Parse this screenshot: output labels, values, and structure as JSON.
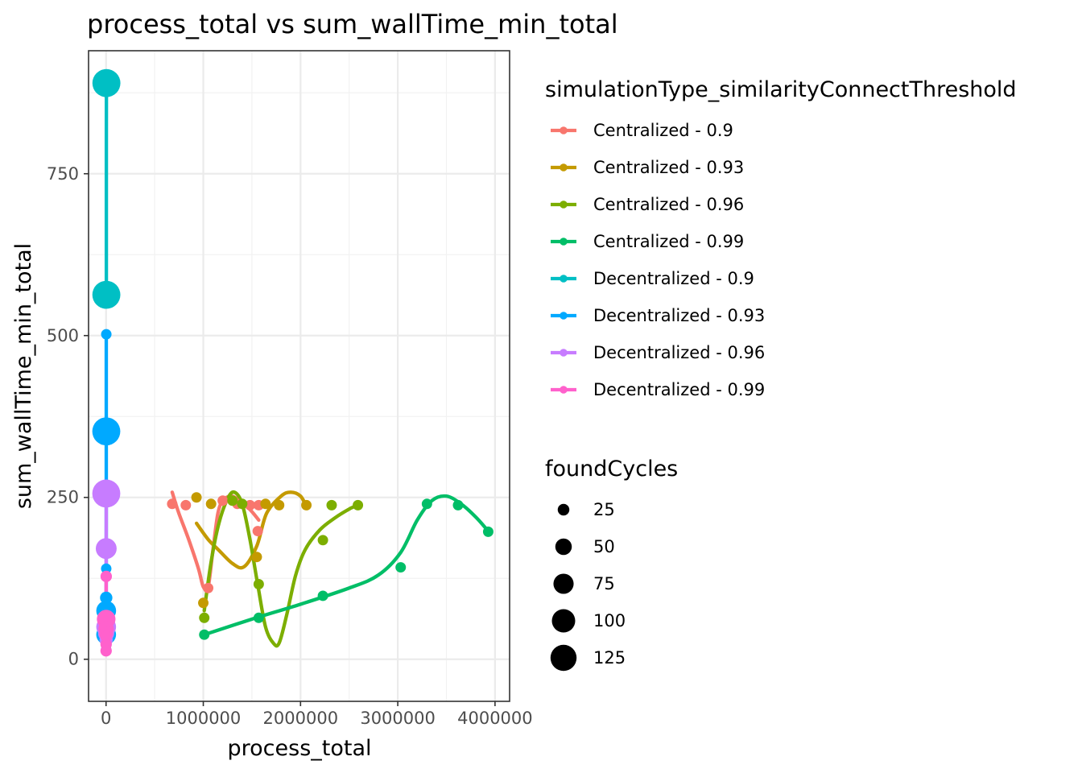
{
  "chart_data": {
    "type": "scatter",
    "title": "process_total  vs  sum_wallTime_min_total",
    "xlabel": "process_total",
    "ylabel": "sum_wallTime_min_total",
    "xlim": [
      -180000,
      4150000
    ],
    "ylim": [
      -65,
      940
    ],
    "xticks": [
      0,
      1000000,
      2000000,
      3000000,
      4000000
    ],
    "xtick_labels": [
      "0",
      "1000000",
      "2000000",
      "3000000",
      "4000000"
    ],
    "yticks": [
      0,
      250,
      500,
      750
    ],
    "ytick_labels": [
      "0",
      "250",
      "500",
      "750"
    ],
    "grid": true,
    "legend_placement": "right",
    "color_legend_title": "simulationType_similarityConnectThreshold",
    "size_legend_title": "foundCycles",
    "size_legend": [
      {
        "label": "25",
        "value": 25
      },
      {
        "label": "50",
        "value": 50
      },
      {
        "label": "75",
        "value": 75
      },
      {
        "label": "100",
        "value": 100
      },
      {
        "label": "125",
        "value": 125
      }
    ],
    "series": [
      {
        "name": "Centralized - 0.9",
        "color": "#F8766D",
        "points": [
          [
            680000,
            240,
            5
          ],
          [
            820000,
            238,
            5
          ],
          [
            1050000,
            110,
            5
          ],
          [
            1200000,
            245,
            5
          ],
          [
            1350000,
            240,
            5
          ],
          [
            1480000,
            238,
            5
          ],
          [
            1570000,
            238,
            5
          ],
          [
            1560000,
            198,
            5
          ]
        ],
        "trend": [
          [
            680000,
            258
          ],
          [
            750000,
            225
          ],
          [
            850000,
            185
          ],
          [
            950000,
            140
          ],
          [
            1000000,
            112
          ],
          [
            1050000,
            112
          ],
          [
            1100000,
            170
          ],
          [
            1150000,
            225
          ],
          [
            1200000,
            245
          ],
          [
            1280000,
            252
          ],
          [
            1350000,
            248
          ],
          [
            1420000,
            240
          ],
          [
            1500000,
            228
          ],
          [
            1570000,
            215
          ]
        ]
      },
      {
        "name": "Centralized - 0.93",
        "color": "#C49A00",
        "points": [
          [
            930000,
            250,
            5
          ],
          [
            1000000,
            87,
            5
          ],
          [
            1080000,
            240,
            5
          ],
          [
            1550000,
            158,
            5
          ],
          [
            1640000,
            240,
            5
          ],
          [
            1780000,
            238,
            5
          ],
          [
            2060000,
            238,
            5
          ]
        ],
        "trend": [
          [
            930000,
            210
          ],
          [
            1050000,
            185
          ],
          [
            1150000,
            170
          ],
          [
            1300000,
            148
          ],
          [
            1420000,
            143
          ],
          [
            1550000,
            175
          ],
          [
            1650000,
            225
          ],
          [
            1800000,
            252
          ],
          [
            1900000,
            258
          ],
          [
            2000000,
            252
          ],
          [
            2060000,
            236
          ]
        ]
      },
      {
        "name": "Centralized - 0.96",
        "color": "#7CAE00",
        "points": [
          [
            1010000,
            64,
            5
          ],
          [
            1300000,
            245,
            5
          ],
          [
            1400000,
            240,
            5
          ],
          [
            1570000,
            116,
            5
          ],
          [
            2230000,
            184,
            5
          ],
          [
            2320000,
            238,
            5
          ],
          [
            2590000,
            238,
            5
          ]
        ],
        "trend": [
          [
            1010000,
            75
          ],
          [
            1080000,
            150
          ],
          [
            1160000,
            210
          ],
          [
            1250000,
            248
          ],
          [
            1320000,
            258
          ],
          [
            1400000,
            240
          ],
          [
            1480000,
            185
          ],
          [
            1560000,
            115
          ],
          [
            1640000,
            50
          ],
          [
            1720000,
            25
          ],
          [
            1780000,
            25
          ],
          [
            1860000,
            70
          ],
          [
            1950000,
            130
          ],
          [
            2050000,
            170
          ],
          [
            2200000,
            200
          ],
          [
            2350000,
            218
          ],
          [
            2500000,
            232
          ],
          [
            2590000,
            238
          ]
        ]
      },
      {
        "name": "Centralized - 0.99",
        "color": "#00BE67",
        "points": [
          [
            1010000,
            38,
            5
          ],
          [
            1570000,
            64,
            5
          ],
          [
            2230000,
            98,
            5
          ],
          [
            3030000,
            142,
            5
          ],
          [
            3300000,
            240,
            5
          ],
          [
            3620000,
            238,
            5
          ],
          [
            3930000,
            197,
            5
          ]
        ],
        "trend": [
          [
            1010000,
            38
          ],
          [
            1500000,
            62
          ],
          [
            2000000,
            85
          ],
          [
            2500000,
            110
          ],
          [
            2800000,
            130
          ],
          [
            3030000,
            165
          ],
          [
            3200000,
            215
          ],
          [
            3350000,
            245
          ],
          [
            3500000,
            252
          ],
          [
            3650000,
            240
          ],
          [
            3800000,
            220
          ],
          [
            3930000,
            198
          ]
        ]
      },
      {
        "name": "Decentralized - 0.9",
        "color": "#00BFC4",
        "points": [
          [
            3500,
            890,
            36
          ],
          [
            3000,
            563,
            36
          ]
        ],
        "trend": [
          [
            3500,
            890
          ],
          [
            3300,
            800
          ],
          [
            3200,
            700
          ],
          [
            3100,
            600
          ],
          [
            3000,
            563
          ]
        ]
      },
      {
        "name": "Decentralized - 0.93",
        "color": "#00A9FF",
        "points": [
          [
            2500,
            502,
            5
          ],
          [
            2300,
            352,
            36
          ],
          [
            1800,
            140,
            5
          ],
          [
            1500,
            95,
            7
          ],
          [
            1200,
            75,
            18
          ],
          [
            1000,
            70,
            11
          ],
          [
            1500,
            57,
            14
          ],
          [
            900,
            38,
            18
          ],
          [
            700,
            25,
            5
          ],
          [
            600,
            15,
            5
          ]
        ],
        "trend": [
          [
            2500,
            502
          ],
          [
            2300,
            420
          ],
          [
            2300,
            352
          ],
          [
            2000,
            250
          ],
          [
            1800,
            140
          ],
          [
            1400,
            80
          ],
          [
            900,
            38
          ],
          [
            600,
            15
          ]
        ]
      },
      {
        "name": "Decentralized - 0.96",
        "color": "#C77CFF",
        "points": [
          [
            2300,
            256,
            36
          ],
          [
            1600,
            171,
            20
          ],
          [
            1500,
            128,
            5
          ],
          [
            1000,
            50,
            18
          ],
          [
            800,
            40,
            12
          ],
          [
            700,
            30,
            8
          ]
        ],
        "trend": [
          [
            2300,
            256
          ],
          [
            1600,
            171
          ],
          [
            1400,
            120
          ],
          [
            1000,
            50
          ],
          [
            700,
            30
          ]
        ]
      },
      {
        "name": "Decentralized - 0.99",
        "color": "#FF61CC",
        "points": [
          [
            1500,
            128,
            6
          ],
          [
            1100,
            62,
            16
          ],
          [
            900,
            47,
            11
          ],
          [
            800,
            40,
            9
          ],
          [
            700,
            35,
            6
          ],
          [
            600,
            23,
            6
          ],
          [
            500,
            13,
            6
          ]
        ],
        "trend": [
          [
            1500,
            128
          ],
          [
            1200,
            80
          ],
          [
            900,
            47
          ],
          [
            700,
            35
          ],
          [
            500,
            13
          ]
        ]
      }
    ]
  }
}
